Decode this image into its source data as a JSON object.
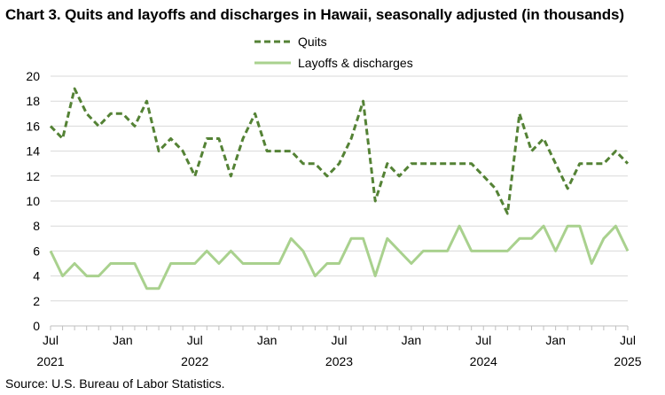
{
  "page": {
    "title": "Chart 3. Quits and layoffs and discharges in Hawaii, seasonally adjusted (in thousands)",
    "source": "Source: U.S. Bureau of Labor Statistics."
  },
  "colors": {
    "quits": "#548235",
    "layoffs": "#a9d18e",
    "gridline": "#d9d9d9",
    "axis": "#bfbfbf"
  },
  "chart_data": {
    "type": "line",
    "x_start": "2021-07",
    "x": [
      "Jul 2021",
      "Aug 2021",
      "Sep 2021",
      "Oct 2021",
      "Nov 2021",
      "Dec 2021",
      "Jan 2022",
      "Feb 2022",
      "Mar 2022",
      "Apr 2022",
      "May 2022",
      "Jun 2022",
      "Jul 2022",
      "Aug 2022",
      "Sep 2022",
      "Oct 2022",
      "Nov 2022",
      "Dec 2022",
      "Jan 2023",
      "Feb 2023",
      "Mar 2023",
      "Apr 2023",
      "May 2023",
      "Jun 2023",
      "Jul 2023",
      "Aug 2023",
      "Sep 2023",
      "Oct 2023",
      "Nov 2023",
      "Dec 2023",
      "Jan 2024",
      "Feb 2024",
      "Mar 2024",
      "Apr 2024",
      "May 2024",
      "Jun 2024",
      "Jul 2024",
      "Aug 2024",
      "Sep 2024",
      "Oct 2024",
      "Nov 2024",
      "Dec 2024",
      "Jan 2025",
      "Feb 2025",
      "Mar 2025",
      "Apr 2025",
      "May 2025",
      "Jun 2025",
      "Jul 2025"
    ],
    "series": [
      {
        "name": "Quits",
        "style": "dashed",
        "values": [
          16,
          15,
          19,
          17,
          16,
          17,
          17,
          16,
          18,
          14,
          15,
          14,
          12,
          15,
          15,
          12,
          15,
          17,
          14,
          14,
          14,
          13,
          13,
          12,
          13,
          15,
          18,
          10,
          13,
          12,
          13,
          13,
          13,
          13,
          13,
          13,
          12,
          11,
          9,
          17,
          14,
          15,
          13,
          11,
          13,
          13,
          13,
          14,
          13
        ]
      },
      {
        "name": "Layoffs & discharges",
        "style": "solid",
        "values": [
          6,
          4,
          5,
          4,
          4,
          5,
          5,
          5,
          3,
          3,
          5,
          5,
          5,
          6,
          5,
          6,
          5,
          5,
          5,
          5,
          7,
          6,
          4,
          5,
          5,
          7,
          7,
          4,
          7,
          6,
          5,
          6,
          6,
          6,
          8,
          6,
          6,
          6,
          6,
          7,
          7,
          8,
          6,
          8,
          8,
          5,
          7,
          8,
          6
        ]
      }
    ],
    "ylim": [
      0,
      20
    ],
    "yticks": [
      "0",
      "2",
      "4",
      "6",
      "8",
      "10",
      "12",
      "14",
      "16",
      "18",
      "20"
    ],
    "xtick_labels": [
      {
        "index": 0,
        "month": "Jul",
        "year": "2021"
      },
      {
        "index": 6,
        "month": "Jan",
        "year": ""
      },
      {
        "index": 12,
        "month": "Jul",
        "year": "2022"
      },
      {
        "index": 18,
        "month": "Jan",
        "year": ""
      },
      {
        "index": 24,
        "month": "Jul",
        "year": "2023"
      },
      {
        "index": 30,
        "month": "Jan",
        "year": ""
      },
      {
        "index": 36,
        "month": "Jul",
        "year": "2024"
      },
      {
        "index": 42,
        "month": "Jan",
        "year": ""
      },
      {
        "index": 48,
        "month": "Jul",
        "year": "2025"
      }
    ],
    "grid": true,
    "legend_position": "top-center"
  }
}
